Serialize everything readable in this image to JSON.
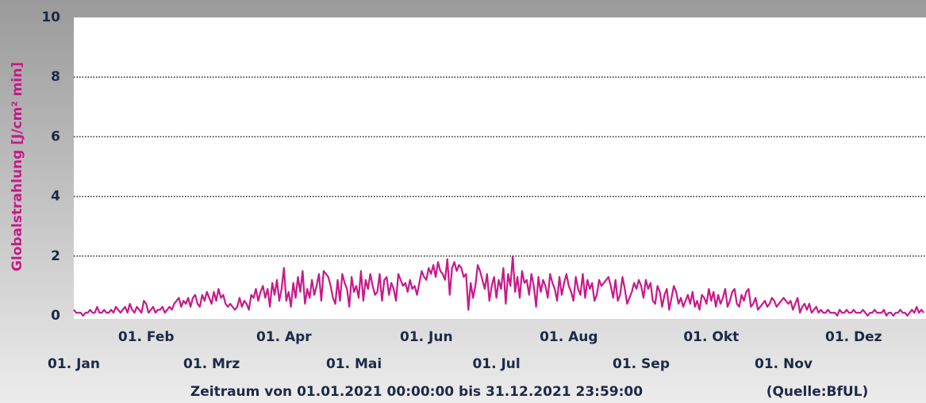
{
  "chart_data": {
    "type": "line",
    "ylabel": "Globalstrahlung [J/cm² min]",
    "xlabel": "Zeitraum von 01.01.2021 00:00:00 bis 31.12.2021 23:59:00",
    "source": "(Quelle:BfUL)",
    "color": "#c8198a",
    "grid": true,
    "ylim": [
      0,
      10
    ],
    "yticks": [
      0,
      2,
      4,
      6,
      8,
      10
    ],
    "xlim": [
      0,
      365
    ],
    "xticks": [
      {
        "value": 0,
        "label": "01. Jan"
      },
      {
        "value": 31,
        "label": "01. Feb"
      },
      {
        "value": 59,
        "label": "01. Mrz"
      },
      {
        "value": 90,
        "label": "01. Apr"
      },
      {
        "value": 120,
        "label": "01. Mai"
      },
      {
        "value": 151,
        "label": "01. Jun"
      },
      {
        "value": 181,
        "label": "01. Jul"
      },
      {
        "value": 212,
        "label": "01. Aug"
      },
      {
        "value": 243,
        "label": "01. Sep"
      },
      {
        "value": 273,
        "label": "01. Okt"
      },
      {
        "value": 304,
        "label": "01. Nov"
      },
      {
        "value": 334,
        "label": "01. Dez"
      }
    ],
    "values": [
      0.2,
      0.1,
      0.1,
      0.1,
      0.0,
      0.1,
      0.1,
      0.2,
      0.1,
      0.1,
      0.3,
      0.1,
      0.1,
      0.2,
      0.1,
      0.1,
      0.2,
      0.1,
      0.3,
      0.2,
      0.1,
      0.2,
      0.3,
      0.1,
      0.4,
      0.2,
      0.1,
      0.3,
      0.2,
      0.1,
      0.5,
      0.4,
      0.1,
      0.2,
      0.3,
      0.1,
      0.2,
      0.2,
      0.3,
      0.1,
      0.2,
      0.3,
      0.2,
      0.4,
      0.5,
      0.6,
      0.3,
      0.5,
      0.4,
      0.6,
      0.3,
      0.6,
      0.7,
      0.4,
      0.3,
      0.7,
      0.5,
      0.8,
      0.6,
      0.4,
      0.8,
      0.5,
      0.9,
      0.6,
      0.7,
      0.4,
      0.3,
      0.4,
      0.3,
      0.2,
      0.3,
      0.6,
      0.3,
      0.5,
      0.4,
      0.2,
      0.7,
      0.6,
      0.9,
      0.5,
      0.8,
      1.0,
      0.6,
      0.9,
      0.3,
      1.1,
      0.7,
      1.2,
      0.5,
      0.9,
      1.6,
      0.5,
      0.8,
      0.3,
      1.1,
      0.6,
      1.3,
      0.8,
      1.5,
      0.4,
      0.9,
      0.6,
      1.2,
      0.7,
      1.0,
      1.4,
      0.5,
      1.5,
      1.4,
      1.3,
      1.0,
      0.6,
      0.4,
      1.2,
      0.5,
      1.4,
      1.1,
      0.9,
      0.3,
      1.3,
      0.8,
      1.0,
      0.6,
      1.5,
      0.5,
      1.2,
      0.9,
      1.4,
      1.0,
      0.7,
      0.8,
      1.4,
      0.5,
      1.2,
      1.3,
      0.7,
      1.1,
      0.9,
      0.5,
      1.4,
      1.2,
      1.0,
      1.1,
      0.8,
      1.2,
      0.9,
      1.0,
      0.7,
      1.1,
      1.5,
      1.3,
      1.2,
      1.6,
      1.4,
      1.7,
      1.3,
      1.8,
      1.5,
      1.4,
      1.2,
      1.9,
      0.7,
      1.6,
      1.8,
      1.5,
      1.7,
      1.6,
      1.3,
      1.4,
      0.2,
      1.1,
      0.6,
      1.0,
      1.7,
      1.5,
      1.2,
      0.9,
      1.4,
      0.5,
      1.0,
      1.3,
      0.6,
      1.2,
      0.9,
      1.6,
      0.4,
      1.4,
      1.0,
      2.0,
      0.8,
      1.3,
      0.6,
      1.5,
      1.1,
      1.2,
      0.7,
      1.4,
      1.0,
      0.3,
      1.3,
      0.8,
      1.2,
      1.0,
      0.6,
      1.4,
      1.1,
      0.9,
      0.5,
      1.3,
      0.7,
      1.1,
      1.4,
      1.0,
      0.8,
      0.5,
      1.3,
      0.9,
      0.7,
      1.4,
      0.6,
      1.2,
      0.9,
      1.1,
      0.5,
      0.7,
      1.2,
      1.0,
      1.1,
      1.2,
      1.3,
      1.0,
      0.6,
      1.2,
      0.5,
      0.7,
      1.3,
      0.9,
      0.4,
      0.6,
      0.8,
      1.1,
      0.9,
      1.2,
      1.0,
      0.6,
      1.2,
      0.9,
      1.1,
      0.5,
      0.4,
      1.0,
      0.8,
      0.3,
      0.7,
      0.9,
      0.2,
      0.6,
      1.0,
      0.8,
      0.4,
      0.6,
      0.3,
      0.5,
      0.7,
      0.4,
      0.8,
      0.3,
      0.5,
      0.2,
      0.7,
      0.6,
      0.4,
      0.9,
      0.5,
      0.8,
      0.3,
      0.7,
      0.4,
      0.6,
      0.9,
      0.3,
      0.5,
      0.8,
      0.9,
      0.4,
      0.3,
      0.7,
      0.5,
      0.8,
      0.9,
      0.3,
      0.4,
      0.6,
      0.2,
      0.3,
      0.4,
      0.5,
      0.3,
      0.4,
      0.6,
      0.5,
      0.3,
      0.4,
      0.5,
      0.6,
      0.5,
      0.4,
      0.5,
      0.2,
      0.4,
      0.6,
      0.1,
      0.3,
      0.4,
      0.2,
      0.4,
      0.1,
      0.2,
      0.3,
      0.1,
      0.2,
      0.1,
      0.1,
      0.2,
      0.1,
      0.1,
      0.1,
      0.0,
      0.2,
      0.1,
      0.1,
      0.2,
      0.1,
      0.1,
      0.2,
      0.1,
      0.1,
      0.1,
      0.2,
      0.1,
      0.0,
      0.1,
      0.1,
      0.2,
      0.1,
      0.1,
      0.1,
      0.2,
      0.0,
      0.1,
      0.1,
      0.0,
      0.1,
      0.1,
      0.2,
      0.1,
      0.1,
      0.0,
      0.1,
      0.2,
      0.1,
      0.3,
      0.1,
      0.2,
      0.1
    ]
  }
}
